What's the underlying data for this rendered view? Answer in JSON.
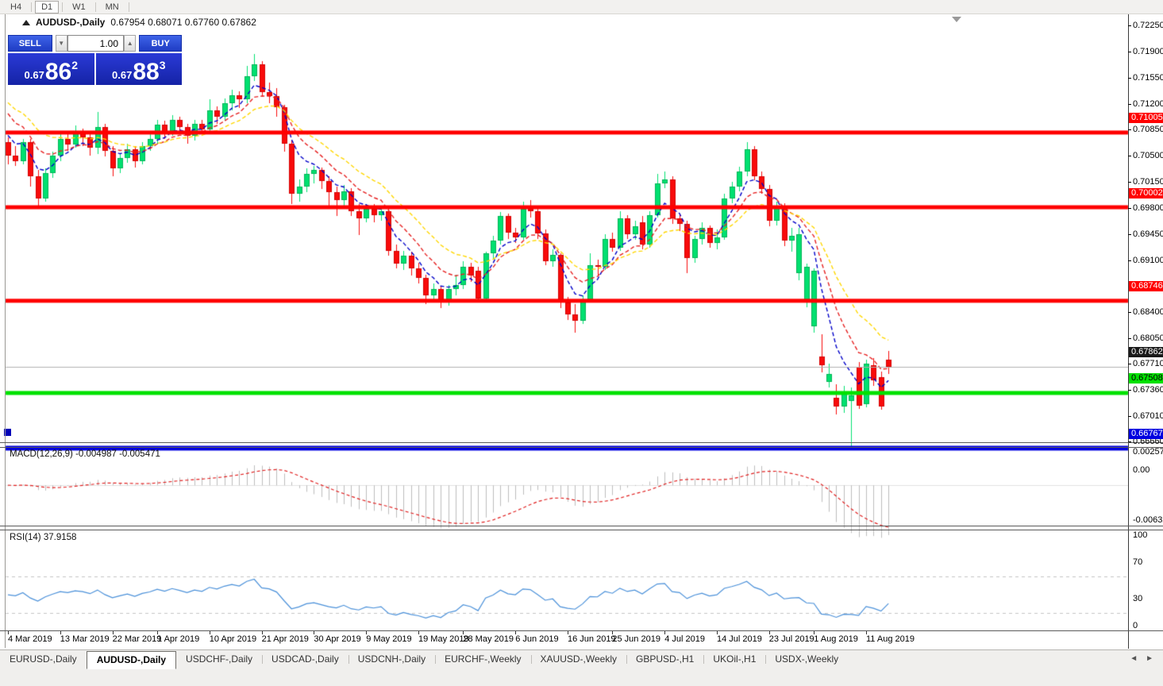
{
  "toolbar": {
    "periods": [
      {
        "label": "H4",
        "active": false
      },
      {
        "label": "D1",
        "active": true
      },
      {
        "label": "W1",
        "active": false
      },
      {
        "label": "MN",
        "active": false
      }
    ]
  },
  "chart": {
    "title": {
      "symbol": "AUDUSD-,Daily",
      "ohlc": "0.67954 0.68071 0.67760 0.67862"
    }
  },
  "trade": {
    "sell_label": "SELL",
    "buy_label": "BUY",
    "volume": "1.00",
    "spin_down": "▼",
    "spin_up": "▲",
    "sell_price": {
      "prefix": "0.67",
      "big": "86",
      "sup": "2"
    },
    "buy_price": {
      "prefix": "0.67",
      "big": "88",
      "sup": "3"
    }
  },
  "macd": {
    "title": "MACD(12,26,9)",
    "values": "-0.004987 -0.005471",
    "params": {
      "fast": 12,
      "slow": 26,
      "signal": 9
    },
    "axis": [
      {
        "text": "0.002574",
        "value": 0.002574
      },
      {
        "text": "0.00",
        "value": 0.0
      },
      {
        "text": "-0.006326",
        "value": -0.006326
      }
    ]
  },
  "rsi": {
    "title": "RSI(14)",
    "value": "37.9158",
    "period": 14,
    "levels": [
      70,
      30
    ],
    "axis": [
      {
        "text": "100",
        "value": 100
      },
      {
        "text": "70",
        "value": 70
      },
      {
        "text": "30",
        "value": 30
      },
      {
        "text": "0",
        "value": 0
      }
    ]
  },
  "tabs": {
    "items": [
      {
        "label": "EURUSD-,Daily",
        "active": false
      },
      {
        "label": "AUDUSD-,Daily",
        "active": true
      },
      {
        "label": "USDCHF-,Daily",
        "active": false
      },
      {
        "label": "USDCAD-,Daily",
        "active": false
      },
      {
        "label": "USDCNH-,Daily",
        "active": false
      },
      {
        "label": "EURCHF-,Weekly",
        "active": false
      },
      {
        "label": "XAUUSD-,Weekly",
        "active": false
      },
      {
        "label": "GBPUSD-,H1",
        "active": false
      },
      {
        "label": "UKOil-,H1",
        "active": false
      },
      {
        "label": "USDX-,Weekly",
        "active": false
      }
    ],
    "left_arrow": "◄",
    "right_arrow": "►"
  },
  "colors": {
    "bull": "#00E070",
    "bull_border": "#00B457",
    "bear": "#F80B0B",
    "bear_border": "#D40505",
    "level_red": "#FF0000",
    "level_green": "#00E100",
    "level_blue": "#0000E0",
    "ma_fast": "#0000C8",
    "ma_mid": "#E62222",
    "ma_slow": "#FFD700",
    "macd_hist": "#BDBDBD",
    "macd_signal": "#E02020",
    "rsi_line": "#4A90D9",
    "current_line": "#B0B0B0",
    "tag_current_bg": "#1A1A1A"
  },
  "chart_data": {
    "type": "candlestick",
    "symbol": "AUDUSD",
    "timeframe": "Daily",
    "title": "AUDUSD-,Daily 0.67954 0.68071 0.67760 0.67862",
    "y_axis_ticks": [
      0.7225,
      0.719,
      0.7155,
      0.712,
      0.7085,
      0.705,
      0.7015,
      0.698,
      0.6945,
      0.691,
      0.684,
      0.6805,
      0.6771,
      0.6736,
      0.6701,
      0.6666
    ],
    "levels": [
      {
        "label": "0.71005",
        "price": 0.71005,
        "color": "red",
        "thickness": 5
      },
      {
        "label": "0.70002",
        "price": 0.70002,
        "color": "red",
        "thickness": 5
      },
      {
        "label": "0.68746",
        "price": 0.68746,
        "color": "red",
        "thickness": 5
      },
      {
        "label": "0.67508",
        "price": 0.67508,
        "color": "green",
        "thickness": 5
      },
      {
        "label": "0.66767",
        "price": 0.66767,
        "color": "blue",
        "thickness": 6
      }
    ],
    "current_price": {
      "label": "0.67862",
      "price": 0.67862
    },
    "x_labels": [
      {
        "text": "4 Mar 2019",
        "bar": 0
      },
      {
        "text": "13 Mar 2019",
        "bar": 7
      },
      {
        "text": "22 Mar 2019",
        "bar": 14
      },
      {
        "text": "1 Apr 2019",
        "bar": 20
      },
      {
        "text": "10 Apr 2019",
        "bar": 27
      },
      {
        "text": "21 Apr 2019",
        "bar": 34
      },
      {
        "text": "30 Apr 2019",
        "bar": 41
      },
      {
        "text": "9 May 2019",
        "bar": 48
      },
      {
        "text": "19 May 2019",
        "bar": 55
      },
      {
        "text": "28 May 2019",
        "bar": 61
      },
      {
        "text": "6 Jun 2019",
        "bar": 68
      },
      {
        "text": "16 Jun 2019",
        "bar": 75
      },
      {
        "text": "25 Jun 2019",
        "bar": 81
      },
      {
        "text": "4 Jul 2019",
        "bar": 88
      },
      {
        "text": "14 Jul 2019",
        "bar": 95
      },
      {
        "text": "23 Jul 2019",
        "bar": 102
      },
      {
        "text": "1 Aug 2019",
        "bar": 108
      },
      {
        "text": "11 Aug 2019",
        "bar": 115
      }
    ],
    "moving_averages": [
      {
        "name": "fast",
        "period": 5,
        "seed": 0.711,
        "color_key": "ma_fast"
      },
      {
        "name": "mid",
        "period": 9,
        "seed": 0.714,
        "color_key": "ma_mid"
      },
      {
        "name": "slow",
        "period": 16,
        "seed": 0.715,
        "color_key": "ma_slow"
      }
    ],
    "macd_scale": {
      "max": 0.002574,
      "min": -0.006326
    },
    "candles": [
      [
        0.7088,
        0.7094,
        0.7058,
        0.707
      ],
      [
        0.707,
        0.7082,
        0.7056,
        0.7062
      ],
      [
        0.7062,
        0.7092,
        0.7058,
        0.7088
      ],
      [
        0.7088,
        0.7092,
        0.7028,
        0.7042
      ],
      [
        0.7042,
        0.705,
        0.7002,
        0.7012
      ],
      [
        0.7012,
        0.7052,
        0.7008,
        0.7046
      ],
      [
        0.7046,
        0.7075,
        0.704,
        0.707
      ],
      [
        0.707,
        0.7098,
        0.7062,
        0.7092
      ],
      [
        0.7092,
        0.71,
        0.7076,
        0.7084
      ],
      [
        0.7084,
        0.711,
        0.708,
        0.71
      ],
      [
        0.71,
        0.7106,
        0.7082,
        0.7094
      ],
      [
        0.7094,
        0.71,
        0.707,
        0.708
      ],
      [
        0.708,
        0.7128,
        0.7072,
        0.7108
      ],
      [
        0.7108,
        0.7112,
        0.7068,
        0.7076
      ],
      [
        0.7076,
        0.7082,
        0.7042,
        0.7052
      ],
      [
        0.7052,
        0.7072,
        0.7046,
        0.7066
      ],
      [
        0.7066,
        0.7086,
        0.706,
        0.7078
      ],
      [
        0.7078,
        0.7082,
        0.7054,
        0.7062
      ],
      [
        0.7062,
        0.7088,
        0.7058,
        0.7082
      ],
      [
        0.7082,
        0.7098,
        0.7076,
        0.7092
      ],
      [
        0.7092,
        0.7118,
        0.7086,
        0.7111
      ],
      [
        0.7111,
        0.7116,
        0.7092,
        0.71
      ],
      [
        0.71,
        0.7124,
        0.7096,
        0.7118
      ],
      [
        0.7118,
        0.7122,
        0.71,
        0.7108
      ],
      [
        0.7108,
        0.7112,
        0.7086,
        0.7096
      ],
      [
        0.7096,
        0.7118,
        0.709,
        0.7112
      ],
      [
        0.7112,
        0.7118,
        0.7098,
        0.7105
      ],
      [
        0.7105,
        0.7145,
        0.71,
        0.713
      ],
      [
        0.713,
        0.7136,
        0.7112,
        0.7122
      ],
      [
        0.7122,
        0.7146,
        0.7116,
        0.714
      ],
      [
        0.714,
        0.7158,
        0.713,
        0.7151
      ],
      [
        0.7151,
        0.7156,
        0.7134,
        0.7145
      ],
      [
        0.7145,
        0.719,
        0.714,
        0.7176
      ],
      [
        0.7176,
        0.7206,
        0.717,
        0.7192
      ],
      [
        0.7192,
        0.7196,
        0.7148,
        0.7155
      ],
      [
        0.7155,
        0.7168,
        0.714,
        0.715
      ],
      [
        0.715,
        0.716,
        0.7122,
        0.7135
      ],
      [
        0.7135,
        0.7138,
        0.7075,
        0.7085
      ],
      [
        0.7085,
        0.709,
        0.7005,
        0.7018
      ],
      [
        0.7018,
        0.7038,
        0.7008,
        0.7028
      ],
      [
        0.7028,
        0.7052,
        0.702,
        0.7045
      ],
      [
        0.7045,
        0.7056,
        0.7032,
        0.705
      ],
      [
        0.705,
        0.7054,
        0.7025,
        0.7035
      ],
      [
        0.7035,
        0.7042,
        0.7002,
        0.702
      ],
      [
        0.702,
        0.7028,
        0.6988,
        0.701
      ],
      [
        0.701,
        0.703,
        0.7,
        0.7022
      ],
      [
        0.7022,
        0.7026,
        0.6988,
        0.6995
      ],
      [
        0.6995,
        0.7004,
        0.6963,
        0.6985
      ],
      [
        0.6985,
        0.7005,
        0.698,
        0.6998
      ],
      [
        0.6998,
        0.7004,
        0.698,
        0.699
      ],
      [
        0.699,
        0.7002,
        0.6982,
        0.6995
      ],
      [
        0.6995,
        0.6998,
        0.6935,
        0.6942
      ],
      [
        0.6942,
        0.695,
        0.6918,
        0.6925
      ],
      [
        0.6925,
        0.6942,
        0.6916,
        0.6935
      ],
      [
        0.6935,
        0.694,
        0.6908,
        0.6918
      ],
      [
        0.6918,
        0.6926,
        0.6898,
        0.6905
      ],
      [
        0.6905,
        0.691,
        0.687,
        0.6882
      ],
      [
        0.6882,
        0.6898,
        0.6874,
        0.689
      ],
      [
        0.689,
        0.6894,
        0.6865,
        0.6872
      ],
      [
        0.6872,
        0.6896,
        0.6868,
        0.689
      ],
      [
        0.689,
        0.691,
        0.6882,
        0.6896
      ],
      [
        0.6896,
        0.6928,
        0.689,
        0.692
      ],
      [
        0.692,
        0.6926,
        0.69,
        0.6908
      ],
      [
        0.6915,
        0.692,
        0.6872,
        0.6878
      ],
      [
        0.6878,
        0.694,
        0.6874,
        0.6938
      ],
      [
        0.6938,
        0.6962,
        0.693,
        0.6955
      ],
      [
        0.6955,
        0.6994,
        0.695,
        0.6988
      ],
      [
        0.6988,
        0.6992,
        0.6958,
        0.6966
      ],
      [
        0.6966,
        0.6972,
        0.6952,
        0.696
      ],
      [
        0.696,
        0.7008,
        0.6956,
        0.6998
      ],
      [
        0.6998,
        0.701,
        0.6986,
        0.6995
      ],
      [
        0.6995,
        0.7,
        0.6958,
        0.6965
      ],
      [
        0.6965,
        0.697,
        0.6922,
        0.6928
      ],
      [
        0.6928,
        0.6944,
        0.692,
        0.6936
      ],
      [
        0.6936,
        0.6938,
        0.6865,
        0.6872
      ],
      [
        0.6872,
        0.688,
        0.6849,
        0.6856
      ],
      [
        0.6856,
        0.687,
        0.6832,
        0.6848
      ],
      [
        0.6848,
        0.6882,
        0.6844,
        0.6876
      ],
      [
        0.6876,
        0.6938,
        0.6872,
        0.6922
      ],
      [
        0.6922,
        0.693,
        0.6908,
        0.692
      ],
      [
        0.692,
        0.6964,
        0.6916,
        0.6958
      ],
      [
        0.6958,
        0.6966,
        0.694,
        0.6946
      ],
      [
        0.6946,
        0.6995,
        0.6942,
        0.6985
      ],
      [
        0.6985,
        0.699,
        0.6958,
        0.6964
      ],
      [
        0.6964,
        0.6982,
        0.6956,
        0.6975
      ],
      [
        0.698,
        0.6988,
        0.6944,
        0.695
      ],
      [
        0.695,
        0.6995,
        0.6946,
        0.699
      ],
      [
        0.699,
        0.7045,
        0.6986,
        0.7032
      ],
      [
        0.7032,
        0.7048,
        0.7026,
        0.7038
      ],
      [
        0.7038,
        0.7042,
        0.6978,
        0.6985
      ],
      [
        0.6985,
        0.6992,
        0.6968,
        0.6978
      ],
      [
        0.6978,
        0.6982,
        0.6912,
        0.6932
      ],
      [
        0.6932,
        0.6962,
        0.6926,
        0.6958
      ],
      [
        0.6958,
        0.698,
        0.695,
        0.6972
      ],
      [
        0.6972,
        0.6976,
        0.6946,
        0.6952
      ],
      [
        0.6952,
        0.697,
        0.6944,
        0.696
      ],
      [
        0.696,
        0.7018,
        0.6956,
        0.7012
      ],
      [
        0.7012,
        0.7034,
        0.7006,
        0.7028
      ],
      [
        0.7028,
        0.7055,
        0.7022,
        0.7048
      ],
      [
        0.7048,
        0.7088,
        0.7042,
        0.7078
      ],
      [
        0.7078,
        0.7082,
        0.7036,
        0.7042
      ],
      [
        0.7042,
        0.7048,
        0.7018,
        0.7025
      ],
      [
        0.7025,
        0.703,
        0.6975,
        0.6982
      ],
      [
        0.6982,
        0.7008,
        0.6976,
        0.7002
      ],
      [
        0.7002,
        0.7006,
        0.6948,
        0.6955
      ],
      [
        0.6955,
        0.6972,
        0.694,
        0.6962
      ],
      [
        0.6912,
        0.6972,
        0.6902,
        0.6964
      ],
      [
        0.6876,
        0.6924,
        0.6866,
        0.692
      ],
      [
        0.684,
        0.6918,
        0.6832,
        0.6915
      ],
      [
        0.68,
        0.683,
        0.6778,
        0.6788
      ],
      [
        0.6766,
        0.679,
        0.6758,
        0.6776
      ],
      [
        0.6744,
        0.6762,
        0.6722,
        0.6733
      ],
      [
        0.6733,
        0.676,
        0.6724,
        0.6752
      ],
      [
        0.674,
        0.6758,
        0.6677,
        0.6748
      ],
      [
        0.6786,
        0.6792,
        0.6729,
        0.6734
      ],
      [
        0.6736,
        0.6796,
        0.6732,
        0.679
      ],
      [
        0.6788,
        0.6798,
        0.676,
        0.6768
      ],
      [
        0.6772,
        0.678,
        0.6728,
        0.6733
      ],
      [
        0.67954,
        0.68071,
        0.6776,
        0.67862
      ]
    ]
  }
}
